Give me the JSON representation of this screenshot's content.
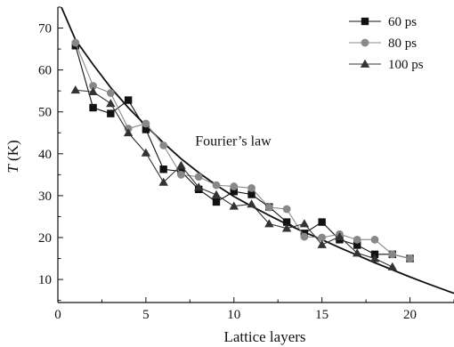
{
  "chart_data": {
    "type": "line",
    "xlabel": "Lattice layers",
    "ylabel": "T (K)",
    "ylabel_italic_part": "T",
    "ylabel_unit_part": " (K)",
    "xlim": [
      0,
      22.5
    ],
    "ylim": [
      4.5,
      75
    ],
    "xticks": [
      0,
      5,
      10,
      15,
      20
    ],
    "yticks": [
      10,
      20,
      30,
      40,
      50,
      60,
      70
    ],
    "grid": false,
    "legend_position": "top-right",
    "series": [
      {
        "name": "60 ps",
        "marker": "square",
        "color": "#111111",
        "x": [
          1,
          2,
          3,
          4,
          5,
          6,
          7,
          8,
          9,
          10,
          11,
          12,
          13,
          14,
          15,
          16,
          17,
          18,
          19,
          20
        ],
        "y": [
          65.8,
          51.0,
          49.6,
          52.8,
          45.8,
          36.3,
          35.8,
          31.5,
          28.5,
          31.0,
          30.3,
          27.3,
          23.7,
          21.0,
          23.7,
          19.5,
          18.2,
          16.0,
          16.0,
          15.0
        ]
      },
      {
        "name": "80 ps",
        "marker": "circle",
        "color": "#888888",
        "x": [
          1,
          2,
          3,
          4,
          5,
          6,
          7,
          8,
          9,
          10,
          11,
          12,
          13,
          14,
          15,
          16,
          17,
          18,
          19,
          20
        ],
        "y": [
          66.5,
          56.2,
          54.5,
          46.0,
          47.2,
          42.0,
          35.0,
          34.5,
          32.5,
          32.2,
          31.8,
          27.2,
          26.8,
          20.2,
          20.0,
          20.8,
          19.5,
          19.5,
          16.0,
          15.0
        ]
      },
      {
        "name": "100 ps",
        "marker": "triangle",
        "color": "#333333",
        "x": [
          1,
          2,
          3,
          4,
          5,
          6,
          7,
          8,
          9,
          10,
          11,
          12,
          13,
          14,
          15,
          16,
          17,
          18,
          19
        ],
        "y": [
          55.2,
          54.8,
          52.0,
          45.0,
          40.2,
          33.2,
          37.2,
          32.0,
          30.2,
          27.5,
          28.0,
          23.3,
          22.2,
          23.3,
          18.3,
          20.2,
          16.3,
          15.0,
          13.0
        ]
      }
    ],
    "annotation": {
      "text": "Fourier’s law",
      "x": 7.8,
      "y": 42.0
    },
    "reference_curve": {
      "name": "Fourier’s law",
      "color": "#111111",
      "x": [
        0.2,
        1,
        2,
        3,
        4,
        5,
        6,
        7,
        8,
        9,
        10,
        11,
        12,
        13,
        14,
        15,
        16,
        17,
        18,
        19,
        20,
        21,
        22.5
      ],
      "y": [
        75.0,
        67.2,
        61.3,
        55.8,
        51.0,
        46.7,
        42.6,
        38.8,
        35.5,
        32.5,
        29.8,
        27.5,
        25.3,
        23.2,
        21.3,
        19.5,
        17.6,
        15.8,
        14.0,
        12.3,
        10.6,
        9.0,
        6.7
      ]
    }
  }
}
